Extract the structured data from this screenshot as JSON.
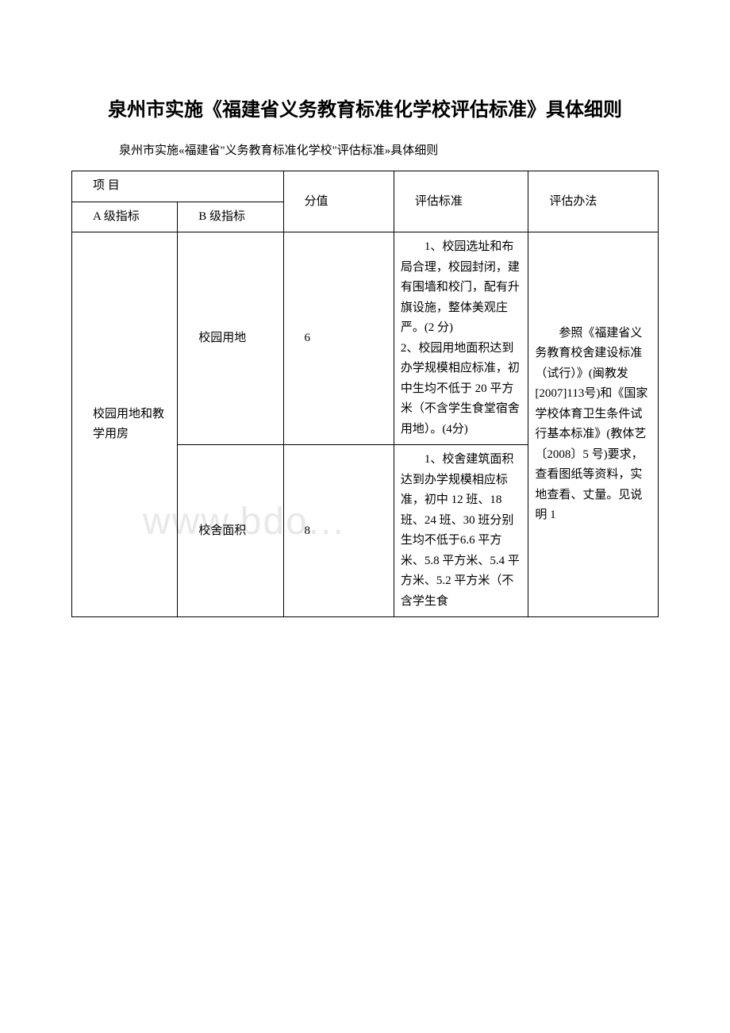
{
  "title": "泉州市实施《福建省义务教育标准化学校评估标准》具体细则",
  "subtitle": "泉州市实施«福建省\"义务教育标准化学校\"评估标准»具体细则",
  "watermark": "www.bdo...",
  "table": {
    "header": {
      "project": "项 目",
      "a_index": "A 级指标",
      "b_index": "B 级指标",
      "score": "分值",
      "standard": "评估标准",
      "method": "评估办法"
    },
    "rows": [
      {
        "a_label": "校园用地和教学用房",
        "b_label_1": "校园用地",
        "score_1": "6",
        "standard_1": "1、校园选址和布局合理，校园封闭，建有围墙和校门，配有升旗设施，整体美观庄严。(2 分)\n2、校园用地面积达到办学规模相应标准，初中生均不低于 20 平方米（不含学生食堂宿舍用地）。(4分)",
        "b_label_2": "校舍面积",
        "score_2": "8",
        "standard_2": "1、校舍建筑面积达到办学规模相应标准，初中 12 班、18 班、24 班、30 班分别生均不低于6.6 平方米、5.8 平方米、5.4 平方米、5.2 平方米（不含学生食",
        "method": "参照《福建省义务教育校舍建设标准（试行）》(闽教发[2007]113号)和《国家学校体育卫生条件试行基本标准》(教体艺〔2008〕5 号)要求，查看图纸等资料，实地查看、丈量。见说明 1"
      }
    ]
  },
  "styles": {
    "background_color": "#ffffff",
    "text_color": "#000000",
    "border_color": "#000000",
    "watermark_color": "#e8e8e8",
    "title_fontsize": 24,
    "body_fontsize": 15
  }
}
